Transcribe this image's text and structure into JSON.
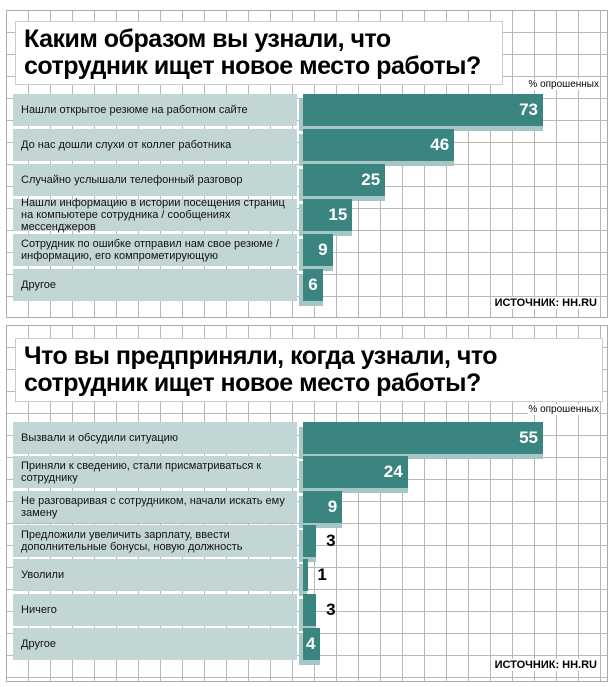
{
  "chart_data": [
    {
      "type": "bar",
      "title": "Каким образом вы узнали, что сотрудник ищет новое место работы?",
      "unit": "% опрошенных",
      "source": "ИСТОЧНИК: HH.RU",
      "categories": [
        "Нашли открытое резюме на работном сайте",
        "До нас дошли слухи от коллег работника",
        "Случайно услышали телефонный разговор",
        "Нашли информацию в истории посещения страниц на компьютере сотрудника / сообщениях мессенджеров",
        "Сотрудник по ошибке отправил нам свое резюме / информацию, его компрометирующую",
        "Другое"
      ],
      "values": [
        73,
        46,
        25,
        15,
        9,
        6
      ],
      "max": 73
    },
    {
      "type": "bar",
      "title": "Что вы предприняли, когда узнали, что сотрудник ищет новое место работы?",
      "unit": "% опрошенных",
      "source": "ИСТОЧНИК: HH.RU",
      "categories": [
        "Вызвали и обсудили ситуацию",
        "Приняли к сведению, стали присматриваться к сотруднику",
        "Не разговаривая с сотрудником, начали искать ему замену",
        "Предложили увеличить зарплату, ввести дополнительные бонусы, новую должность",
        "Уволили",
        "Ничего",
        "Другое"
      ],
      "values": [
        55,
        24,
        9,
        3,
        1,
        3,
        4
      ],
      "max": 55
    }
  ],
  "colors": {
    "bar": "#3b8580",
    "shadow": "#a5c6c4",
    "label_bg": "#c2d6d5"
  }
}
